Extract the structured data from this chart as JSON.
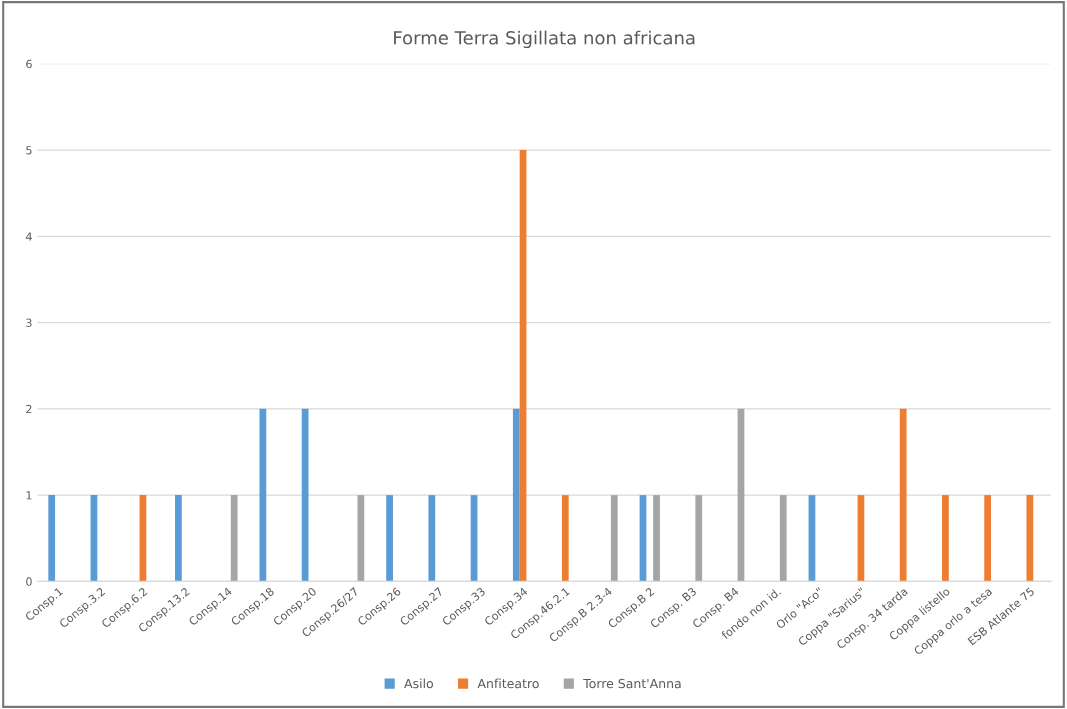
{
  "chart_data": {
    "type": "bar",
    "title": "Forme Terra Sigillata non africana",
    "categories": [
      "Consp.1",
      "Consp.3.2",
      "Consp.6.2",
      "Consp.13.2",
      "Consp.14",
      "Consp.18",
      "Consp.20",
      "Consp.26/27",
      "Consp.26",
      "Consp.27",
      "Consp.33",
      "Consp.34",
      "Consp.46.2.1",
      "Consp.B 2.3-4",
      "Consp.B 2",
      "Consp. B3",
      "Consp. B4",
      "fondo non id.",
      "Orlo \"Aco\"",
      "Coppa \"Sarius\"",
      "Consp. 34 tarda",
      "Coppa listello",
      "Coppa orlo a tesa",
      "ESB Atlante 75"
    ],
    "series": [
      {
        "name": "Asilo",
        "color": "#5b9bd5",
        "values": [
          1,
          1,
          null,
          1,
          null,
          2,
          2,
          null,
          1,
          1,
          1,
          2,
          null,
          null,
          1,
          null,
          null,
          null,
          1,
          null,
          null,
          null,
          null,
          null
        ]
      },
      {
        "name": "Anfiteatro",
        "color": "#ed7d31",
        "values": [
          null,
          null,
          1,
          null,
          null,
          null,
          null,
          null,
          null,
          null,
          null,
          5,
          1,
          null,
          null,
          null,
          null,
          null,
          null,
          1,
          2,
          1,
          1,
          1
        ]
      },
      {
        "name": "Torre Sant'Anna",
        "color": "#a5a5a5",
        "values": [
          null,
          null,
          null,
          null,
          1,
          null,
          null,
          1,
          null,
          null,
          null,
          null,
          null,
          1,
          1,
          1,
          2,
          1,
          null,
          null,
          null,
          null,
          null,
          null
        ]
      }
    ],
    "ylim": [
      0,
      6
    ],
    "yticks": [
      0,
      1,
      2,
      3,
      4,
      5,
      6
    ],
    "grid": "y",
    "legend": "bottom"
  }
}
